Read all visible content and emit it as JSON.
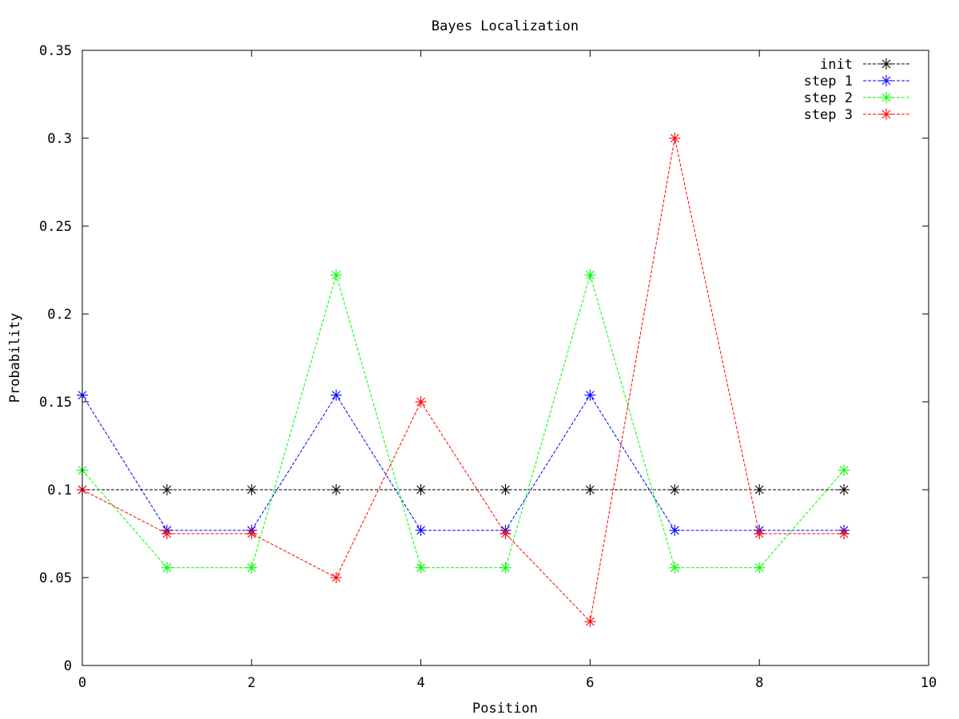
{
  "chart_data": {
    "type": "line",
    "title": "Bayes Localization",
    "xlabel": "Position",
    "ylabel": "Probability",
    "xlim": [
      0,
      10
    ],
    "ylim": [
      0,
      0.35
    ],
    "x_ticks": [
      0,
      2,
      4,
      6,
      8,
      10
    ],
    "x_tick_labels": [
      "0",
      "2",
      "4",
      "6",
      "8",
      "10"
    ],
    "y_ticks": [
      0,
      0.05,
      0.1,
      0.15,
      0.2,
      0.25,
      0.3,
      0.35
    ],
    "y_tick_labels": [
      "0",
      "0.05",
      "0.1",
      "0.15",
      "0.2",
      "0.25",
      "0.3",
      "0.35"
    ],
    "grid": false,
    "legend_position": "top-right",
    "line_style": "dashed",
    "marker": "asterisk",
    "x": [
      0,
      1,
      2,
      3,
      4,
      5,
      6,
      7,
      8,
      9
    ],
    "series": [
      {
        "name": "init",
        "color": "#000000",
        "values": [
          0.1,
          0.1,
          0.1,
          0.1,
          0.1,
          0.1,
          0.1,
          0.1,
          0.1,
          0.1
        ]
      },
      {
        "name": "step 1",
        "color": "#0000ff",
        "values": [
          0.1538,
          0.0769,
          0.0769,
          0.1538,
          0.0769,
          0.0769,
          0.1538,
          0.0769,
          0.0769,
          0.0769
        ]
      },
      {
        "name": "step 2",
        "color": "#00ff00",
        "values": [
          0.1111,
          0.0556,
          0.0556,
          0.2222,
          0.0556,
          0.0556,
          0.2222,
          0.0556,
          0.0556,
          0.1111
        ]
      },
      {
        "name": "step 3",
        "color": "#ff0000",
        "values": [
          0.1,
          0.075,
          0.075,
          0.05,
          0.15,
          0.075,
          0.025,
          0.3,
          0.075,
          0.075
        ]
      }
    ]
  }
}
